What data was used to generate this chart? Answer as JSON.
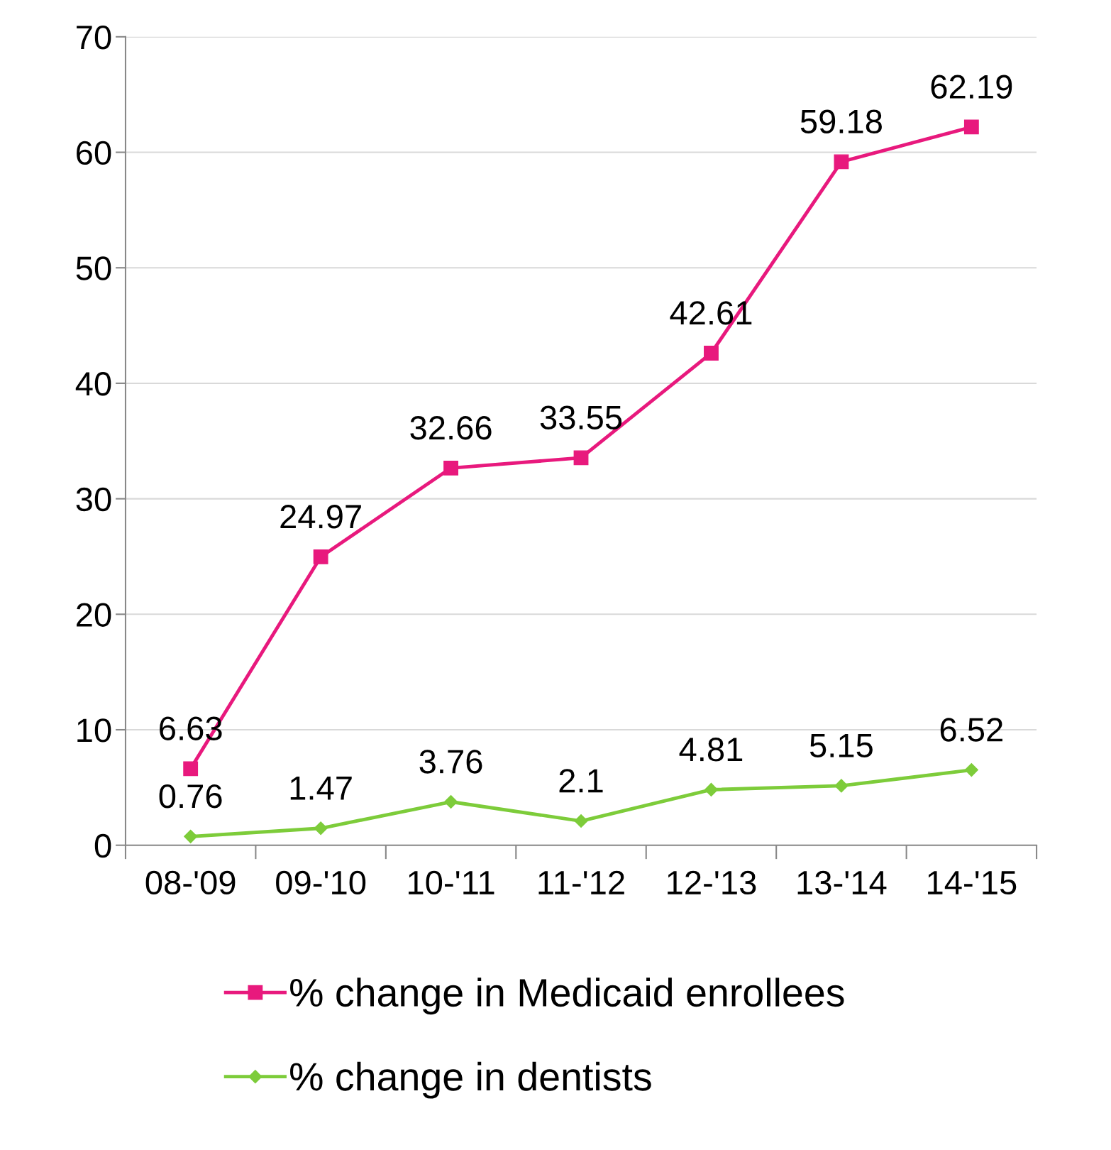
{
  "chart_data": {
    "type": "line",
    "categories": [
      "08-'09",
      "09-'10",
      "10-'11",
      "11-'12",
      "12-'13",
      "13-'14",
      "14-'15"
    ],
    "series": [
      {
        "name": "% change in Medicaid enrollees",
        "color": "#e8197d",
        "marker": "square",
        "values": [
          6.63,
          24.97,
          32.66,
          33.55,
          42.61,
          59.18,
          62.19
        ]
      },
      {
        "name": "% change in dentists",
        "color": "#7dcc3a",
        "marker": "diamond",
        "values": [
          0.76,
          1.47,
          3.76,
          2.1,
          4.81,
          5.15,
          6.52
        ]
      }
    ],
    "ylim": [
      0,
      70
    ],
    "yticks": [
      0,
      10,
      20,
      30,
      40,
      50,
      60,
      70
    ],
    "grid": "y",
    "legend": "bottom",
    "data_labels": true,
    "line_style": "solid"
  }
}
